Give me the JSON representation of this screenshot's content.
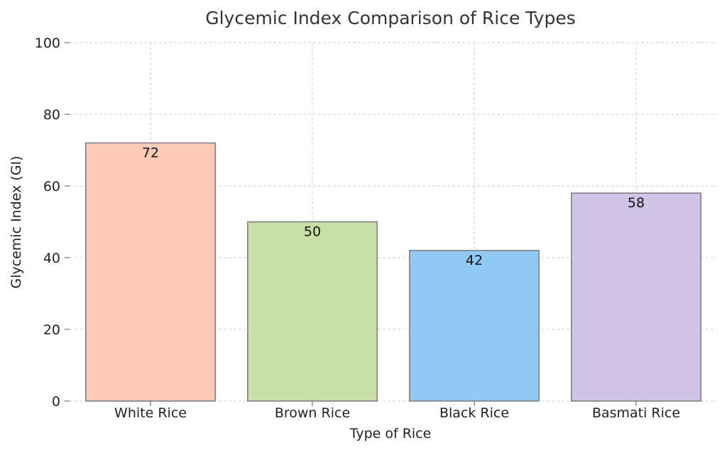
{
  "chart_data": {
    "type": "bar",
    "title": "Glycemic Index Comparison of Rice Types",
    "xlabel": "Type of Rice",
    "ylabel": "Glycemic Index (GI)",
    "categories": [
      "White Rice",
      "Brown Rice",
      "Black Rice",
      "Basmati Rice"
    ],
    "values": [
      72,
      50,
      42,
      58
    ],
    "colors": [
      "#ffcbb8",
      "#c7e0a6",
      "#91c9f5",
      "#d0c5e8"
    ],
    "bar_edge_color": "#808080",
    "ylim": [
      0,
      100
    ],
    "yticks": [
      0,
      20,
      40,
      60,
      80,
      100
    ],
    "grid": true,
    "data_labels": true
  }
}
